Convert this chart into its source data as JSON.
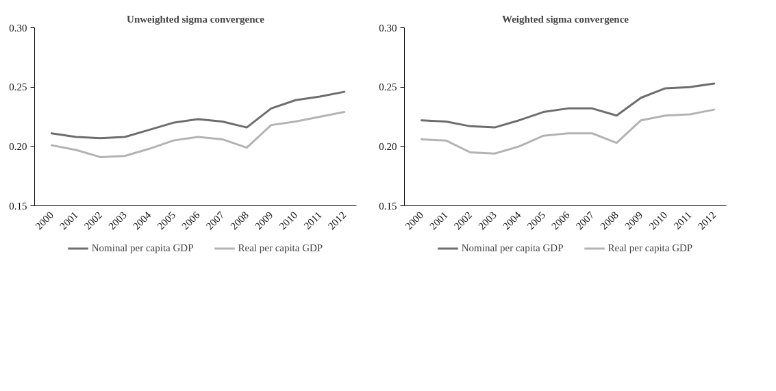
{
  "chart_data": [
    {
      "type": "line",
      "title": "Unweighted sigma convergence",
      "categories": [
        "2000",
        "2001",
        "2002",
        "2003",
        "2004",
        "2005",
        "2006",
        "2007",
        "2008",
        "2009",
        "2010",
        "2011",
        "2012"
      ],
      "series": [
        {
          "name": "Nominal per capita GDP",
          "color": "#6d6d6d",
          "values": [
            0.211,
            0.208,
            0.207,
            0.208,
            0.214,
            0.22,
            0.223,
            0.221,
            0.216,
            0.232,
            0.239,
            0.242,
            0.246
          ]
        },
        {
          "name": "Real per capita GDP",
          "color": "#b3b3b3",
          "values": [
            0.201,
            0.197,
            0.191,
            0.192,
            0.198,
            0.205,
            0.208,
            0.206,
            0.199,
            0.218,
            0.221,
            0.225,
            0.229
          ]
        }
      ],
      "ylim": [
        0.15,
        0.3
      ],
      "yticks": [
        {
          "value": 0.15,
          "label": "0.15"
        },
        {
          "value": 0.2,
          "label": "0.20"
        },
        {
          "value": 0.25,
          "label": "0.25"
        },
        {
          "value": 0.3,
          "label": "0.30"
        }
      ],
      "grid": false,
      "legend": "bottom"
    },
    {
      "type": "line",
      "title": "Weighted sigma convergence",
      "categories": [
        "2000",
        "2001",
        "2002",
        "2003",
        "2004",
        "2005",
        "2006",
        "2007",
        "2008",
        "2009",
        "2010",
        "2011",
        "2012"
      ],
      "series": [
        {
          "name": "Nominal per capita GDP",
          "color": "#6d6d6d",
          "values": [
            0.222,
            0.221,
            0.217,
            0.216,
            0.222,
            0.229,
            0.232,
            0.232,
            0.226,
            0.241,
            0.249,
            0.25,
            0.253
          ]
        },
        {
          "name": "Real per capita GDP",
          "color": "#b3b3b3",
          "values": [
            0.206,
            0.205,
            0.195,
            0.194,
            0.2,
            0.209,
            0.211,
            0.211,
            0.203,
            0.222,
            0.226,
            0.227,
            0.231
          ]
        }
      ],
      "ylim": [
        0.15,
        0.3
      ],
      "yticks": [
        {
          "value": 0.15,
          "label": "0.15"
        },
        {
          "value": 0.2,
          "label": "0.20"
        },
        {
          "value": 0.25,
          "label": "0.25"
        },
        {
          "value": 0.3,
          "label": "0.30"
        }
      ],
      "grid": false,
      "legend": "bottom"
    }
  ]
}
